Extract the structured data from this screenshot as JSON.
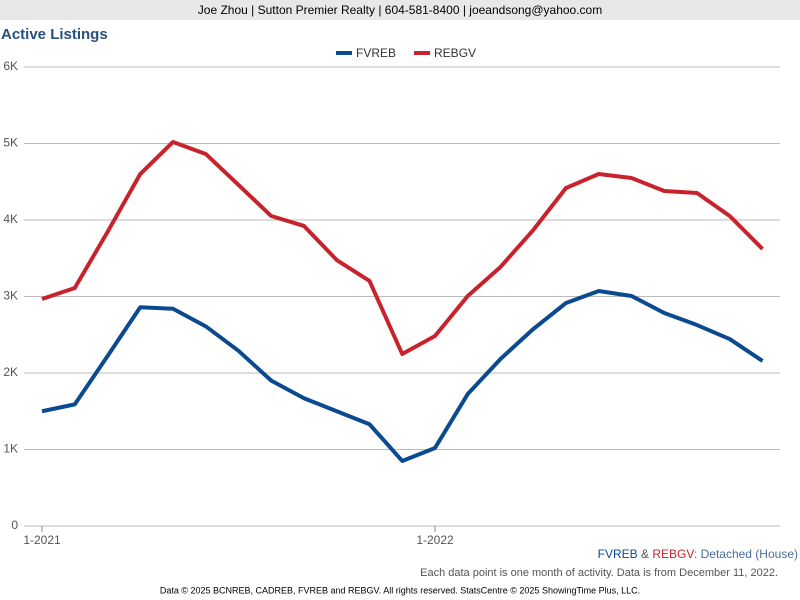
{
  "header": "Joe Zhou | Sutton Premier Realty | 604-581-8400 | joeandsong@yahoo.com",
  "chart_data": {
    "type": "line",
    "title": "Active Listings",
    "categories": [
      "1-2021",
      null,
      null,
      null,
      null,
      null,
      null,
      null,
      null,
      null,
      null,
      null,
      "1-2022",
      null,
      null,
      null,
      null,
      null,
      null,
      null,
      null,
      null,
      null
    ],
    "series": [
      {
        "name": "FVREB",
        "color": "#0b4a8f",
        "values": [
          1500,
          1590,
          2220,
          2860,
          2840,
          2610,
          2290,
          1900,
          1670,
          1500,
          1330,
          850,
          1020,
          1725,
          2183,
          2575,
          2915,
          3072,
          3007,
          2784,
          2627,
          2444,
          2157
        ]
      },
      {
        "name": "REBGV",
        "color": "#c8232c",
        "values": [
          2967,
          3111,
          3843,
          4601,
          5020,
          4863,
          4458,
          4052,
          3922,
          3477,
          3203,
          2248,
          2484,
          3007,
          3386,
          3869,
          4418,
          4601,
          4549,
          4379,
          4353,
          4052,
          3621
        ]
      }
    ],
    "ylim": [
      0,
      6000
    ],
    "yticks": [
      0,
      {
        "value": 1000,
        "label": "1K"
      },
      {
        "value": 2000,
        "label": "2K"
      },
      {
        "value": 3000,
        "label": "3K"
      },
      {
        "value": 4000,
        "label": "4K"
      },
      {
        "value": 5000,
        "label": "5K"
      },
      {
        "value": 6000,
        "label": "6K"
      }
    ],
    "grid": true,
    "legend": "top"
  },
  "source_label": [
    "FVREB",
    " & ",
    "REBGV",
    ": Detached (House)"
  ],
  "note": "Each data point is one month of activity. Data is from December 11, 2022.",
  "footer": "Data © 2025 BCNREB, CADREB, FVREB and REBGV. All rights reserved. StatsCentre © 2025 ShowingTime Plus, LLC."
}
